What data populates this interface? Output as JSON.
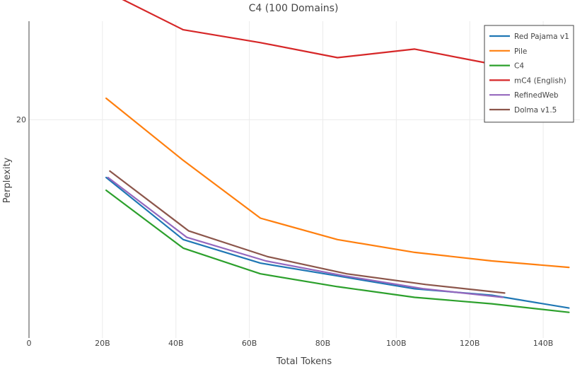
{
  "chart_data": {
    "type": "line",
    "title": "C4 (100 Domains)",
    "xlabel": "Total Tokens",
    "ylabel": "Perplexity",
    "xlim": [
      0,
      150
    ],
    "ylim": [
      14.9,
      22.3
    ],
    "x_ticks": [
      {
        "value": 0,
        "label": "0"
      },
      {
        "value": 20,
        "label": "20B"
      },
      {
        "value": 40,
        "label": "40B"
      },
      {
        "value": 60,
        "label": "60B"
      },
      {
        "value": 80,
        "label": "80B"
      },
      {
        "value": 100,
        "label": "100B"
      },
      {
        "value": 120,
        "label": "120B"
      },
      {
        "value": 140,
        "label": "140B"
      }
    ],
    "y_ticks": [
      {
        "value": 20,
        "label": "20"
      }
    ],
    "grid": true,
    "legend_position": "top-right",
    "series": [
      {
        "name": "Red Pajama v1",
        "color": "#1f77b4",
        "x": [
          21,
          42,
          63,
          84,
          105,
          126,
          147
        ],
        "y": [
          18.65,
          17.2,
          16.65,
          16.35,
          16.05,
          15.9,
          15.6
        ]
      },
      {
        "name": "Pile",
        "color": "#ff7f0e",
        "x": [
          21,
          42,
          63,
          84,
          105,
          126,
          147
        ],
        "y": [
          20.5,
          19.05,
          17.7,
          17.2,
          16.9,
          16.7,
          16.55
        ]
      },
      {
        "name": "C4",
        "color": "#2ca02c",
        "x": [
          21,
          42,
          63,
          84,
          105,
          126,
          147
        ],
        "y": [
          18.35,
          17.0,
          16.4,
          16.1,
          15.85,
          15.7,
          15.5
        ]
      },
      {
        "name": "mC4 (English)",
        "color": "#d62728",
        "x": [
          21,
          42,
          63,
          84,
          105,
          126,
          138
        ],
        "y": [
          23.0,
          22.1,
          21.8,
          21.45,
          21.65,
          21.3,
          21.0
        ]
      },
      {
        "name": "RefinedWeb",
        "color": "#9467bd",
        "x": [
          21.5,
          43,
          64.5,
          86,
          107.5,
          129
        ],
        "y": [
          18.65,
          17.25,
          16.7,
          16.35,
          16.05,
          15.85
        ]
      },
      {
        "name": "Dolma v1.5",
        "color": "#8c564b",
        "x": [
          22,
          43.5,
          65,
          86.5,
          108,
          129.5
        ],
        "y": [
          18.8,
          17.4,
          16.8,
          16.4,
          16.15,
          15.95
        ]
      }
    ]
  }
}
